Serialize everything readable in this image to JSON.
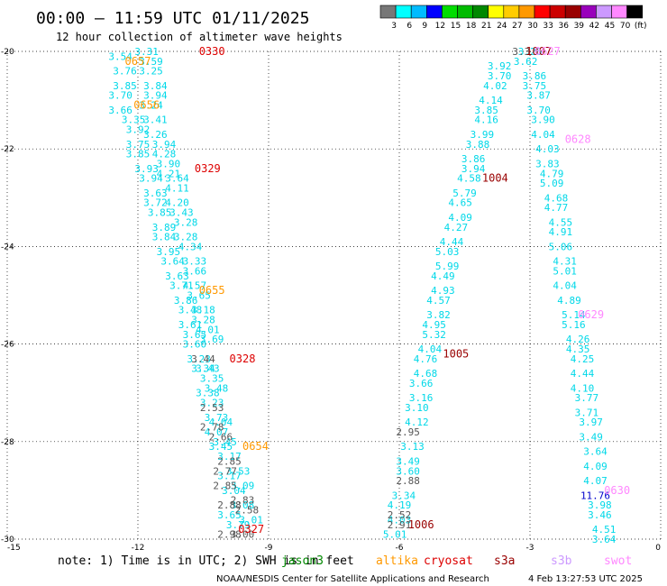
{
  "header": {
    "title": "00:00 – 11:59 UTC 01/11/2025",
    "subtitle": "12 hour collection of altimeter wave heights"
  },
  "legend": {
    "colors": [
      "#777777",
      "#00ffff",
      "#00bbff",
      "#0000ff",
      "#00dd00",
      "#00bb00",
      "#008800",
      "#ffff00",
      "#ffcc00",
      "#ff9900",
      "#ff0000",
      "#cc0000",
      "#990000",
      "#9900bb",
      "#cc99ff",
      "#ff88ff",
      "#000000"
    ],
    "labels": [
      "3",
      "6",
      "9",
      "12",
      "15",
      "18",
      "21",
      "24",
      "27",
      "30",
      "33",
      "36",
      "39",
      "42",
      "45",
      "70",
      "(ft)"
    ]
  },
  "footer": {
    "note_prefix": "note: 1) Time is in UTC; 2) SWH is in feet",
    "satellites": [
      {
        "name": "jason3",
        "color": "#008800"
      },
      {
        "name": "altika",
        "color": "#ff9900"
      },
      {
        "name": "cryosat",
        "color": "#dd0000"
      },
      {
        "name": "s3a",
        "color": "#990000"
      },
      {
        "name": "s3b",
        "color": "#cc99ff"
      },
      {
        "name": "swot",
        "color": "#ff88ff"
      }
    ],
    "credit": "NOAA/NESDIS Center for Satellite Applications and Research",
    "timestamp": "4 Feb 13:27:53 UTC 2025"
  },
  "chart_data": {
    "type": "scatter",
    "xlim": [
      -15,
      0
    ],
    "ylim": [
      -30,
      -20
    ],
    "x_ticks": [
      -15,
      -12,
      -9,
      -6,
      -3,
      0
    ],
    "y_ticks": [
      -20,
      -22,
      -24,
      -26,
      -28,
      -30
    ],
    "grid": true,
    "series": [
      {
        "color": "#00d8e8",
        "points": [
          [
            -12.4,
            -20.1,
            "3.54"
          ],
          [
            -11.8,
            -20.0,
            "3.31"
          ],
          [
            -11.7,
            -20.2,
            "3.59"
          ],
          [
            -12.3,
            -20.4,
            "3.76"
          ],
          [
            -11.7,
            -20.4,
            "3.25"
          ],
          [
            -12.3,
            -20.7,
            "3.85"
          ],
          [
            -11.6,
            -20.7,
            "3.84"
          ],
          [
            -12.4,
            -20.9,
            "3.70"
          ],
          [
            -11.6,
            -20.9,
            "3.94"
          ],
          [
            -12.4,
            -21.2,
            "3.66"
          ],
          [
            -11.7,
            -21.1,
            "3.24"
          ],
          [
            -12.1,
            -21.4,
            "3.35"
          ],
          [
            -11.6,
            -21.4,
            "3.41"
          ],
          [
            -12.0,
            -21.6,
            "3.92"
          ],
          [
            -11.6,
            -21.7,
            "3.26"
          ],
          [
            -12.0,
            -21.9,
            "3.75"
          ],
          [
            -11.4,
            -21.9,
            "3.94"
          ],
          [
            -12.0,
            -22.1,
            "3.85"
          ],
          [
            -11.4,
            -22.1,
            "4.28"
          ],
          [
            -11.3,
            -22.3,
            "3.90"
          ],
          [
            -11.8,
            -22.4,
            "3.93"
          ],
          [
            -11.3,
            -22.5,
            "4.21"
          ],
          [
            -11.7,
            -22.6,
            "3.94"
          ],
          [
            -11.1,
            -22.6,
            "3.64"
          ],
          [
            -11.6,
            -22.9,
            "3.63"
          ],
          [
            -11.1,
            -22.8,
            "4.11"
          ],
          [
            -11.6,
            -23.1,
            "3.72"
          ],
          [
            -11.1,
            -23.1,
            "4.20"
          ],
          [
            -11.5,
            -23.3,
            "3.85"
          ],
          [
            -11.0,
            -23.3,
            "3.43"
          ],
          [
            -11.4,
            -23.6,
            "3.89"
          ],
          [
            -10.9,
            -23.5,
            "3.28"
          ],
          [
            -11.4,
            -23.8,
            "3.84"
          ],
          [
            -10.9,
            -23.8,
            "3.28"
          ],
          [
            -11.3,
            -24.1,
            "3.95"
          ],
          [
            -10.8,
            -24.0,
            "4.34"
          ],
          [
            -11.2,
            -24.3,
            "3.64"
          ],
          [
            -10.7,
            -24.3,
            "3.33"
          ],
          [
            -11.1,
            -24.6,
            "3.63"
          ],
          [
            -10.7,
            -24.5,
            "3.66"
          ],
          [
            -11.0,
            -24.8,
            "3.71"
          ],
          [
            -10.7,
            -24.8,
            "4.57"
          ],
          [
            -10.9,
            -25.1,
            "3.86"
          ],
          [
            -10.6,
            -25.0,
            "3.65"
          ],
          [
            -10.8,
            -25.3,
            "3.48"
          ],
          [
            -10.5,
            -25.3,
            "3.18"
          ],
          [
            -10.8,
            -25.6,
            "3.61"
          ],
          [
            -10.5,
            -25.5,
            "3.28"
          ],
          [
            -10.7,
            -25.8,
            "3.65"
          ],
          [
            -10.4,
            -25.7,
            "4.01"
          ],
          [
            -10.3,
            -25.9,
            "3.69"
          ],
          [
            -10.7,
            -26.0,
            "3.60"
          ],
          [
            -10.6,
            -26.3,
            "3.23"
          ],
          [
            -10.4,
            -26.5,
            "3.43"
          ],
          [
            -10.5,
            -26.5,
            "3.34"
          ],
          [
            -10.3,
            -26.7,
            "3.35"
          ],
          [
            -10.4,
            -27.0,
            "3.38"
          ],
          [
            -10.2,
            -26.9,
            "3.48"
          ],
          [
            -10.3,
            -27.2,
            "3.23"
          ],
          [
            -10.2,
            -27.5,
            "3.73"
          ],
          [
            -10.1,
            -27.6,
            "4.04"
          ],
          [
            -10.2,
            -27.8,
            "4.07"
          ],
          [
            -10.0,
            -28.0,
            "3.45"
          ],
          [
            -10.1,
            -28.1,
            "3.45"
          ],
          [
            -9.9,
            -28.3,
            "3.17"
          ],
          [
            -9.7,
            -28.6,
            "3.53"
          ],
          [
            -9.9,
            -28.7,
            "3.17"
          ],
          [
            -9.6,
            -28.9,
            "3.09"
          ],
          [
            -9.8,
            -29.0,
            "3.04"
          ],
          [
            -9.6,
            -29.3,
            "3.08"
          ],
          [
            -9.9,
            -29.5,
            "3.65"
          ],
          [
            -9.7,
            -29.7,
            "3.79"
          ],
          [
            -9.4,
            -29.6,
            "3.01"
          ],
          [
            -3.7,
            -20.3,
            "3.92"
          ],
          [
            -3.1,
            -20.2,
            "3.62"
          ],
          [
            -3.0,
            -20.0,
            "3.26"
          ],
          [
            -3.7,
            -20.5,
            "3.70"
          ],
          [
            -2.9,
            -20.5,
            "3.86"
          ],
          [
            -3.8,
            -20.7,
            "4.02"
          ],
          [
            -2.9,
            -20.7,
            "3.75"
          ],
          [
            -3.9,
            -21.0,
            "4.14"
          ],
          [
            -2.8,
            -20.9,
            "3.87"
          ],
          [
            -4.0,
            -21.2,
            "3.85"
          ],
          [
            -2.8,
            -21.2,
            "3.70"
          ],
          [
            -4.0,
            -21.4,
            "4.16"
          ],
          [
            -2.7,
            -21.4,
            "3.90"
          ],
          [
            -4.1,
            -21.7,
            "3.99"
          ],
          [
            -2.7,
            -21.7,
            "4.04"
          ],
          [
            -4.2,
            -21.9,
            "3.88"
          ],
          [
            -2.6,
            -22.0,
            "4.03"
          ],
          [
            -4.3,
            -22.2,
            "3.86"
          ],
          [
            -2.6,
            -22.3,
            "3.83"
          ],
          [
            -4.3,
            -22.4,
            "3.94"
          ],
          [
            -2.5,
            -22.5,
            "4.79"
          ],
          [
            -4.4,
            -22.6,
            "4.58"
          ],
          [
            -2.5,
            -22.7,
            "5.09"
          ],
          [
            -4.5,
            -22.9,
            "5.79"
          ],
          [
            -2.4,
            -23.0,
            "4.68"
          ],
          [
            -4.6,
            -23.1,
            "4.65"
          ],
          [
            -2.4,
            -23.2,
            "4.77"
          ],
          [
            -4.6,
            -23.4,
            "4.09"
          ],
          [
            -2.3,
            -23.5,
            "4.55"
          ],
          [
            -4.7,
            -23.6,
            "4.27"
          ],
          [
            -2.3,
            -23.7,
            "4.91"
          ],
          [
            -4.8,
            -23.9,
            "4.44"
          ],
          [
            -2.3,
            -24.0,
            "5.06"
          ],
          [
            -4.9,
            -24.1,
            "5.03"
          ],
          [
            -2.2,
            -24.3,
            "4.31"
          ],
          [
            -4.9,
            -24.4,
            "5.99"
          ],
          [
            -2.2,
            -24.5,
            "5.01"
          ],
          [
            -5.0,
            -24.6,
            "4.49"
          ],
          [
            -2.2,
            -24.8,
            "4.04"
          ],
          [
            -5.0,
            -24.9,
            "4.93"
          ],
          [
            -2.1,
            -25.1,
            "4.89"
          ],
          [
            -5.1,
            -25.1,
            "4.57"
          ],
          [
            -5.1,
            -25.4,
            "3.82"
          ],
          [
            -2.0,
            -25.4,
            "5.14"
          ],
          [
            -5.2,
            -25.6,
            "4.95"
          ],
          [
            -2.0,
            -25.6,
            "5.16"
          ],
          [
            -5.2,
            -25.8,
            "5.32"
          ],
          [
            -1.9,
            -25.9,
            "4.26"
          ],
          [
            -5.3,
            -26.1,
            "4.04"
          ],
          [
            -1.9,
            -26.1,
            "4.35"
          ],
          [
            -5.4,
            -26.3,
            "4.76"
          ],
          [
            -1.8,
            -26.3,
            "4.25"
          ],
          [
            -5.4,
            -26.6,
            "4.68"
          ],
          [
            -1.8,
            -26.6,
            "4.44"
          ],
          [
            -5.5,
            -26.8,
            "3.66"
          ],
          [
            -1.8,
            -26.9,
            "4.10"
          ],
          [
            -5.5,
            -27.1,
            "3.16"
          ],
          [
            -1.7,
            -27.1,
            "3.77"
          ],
          [
            -5.6,
            -27.3,
            "3.10"
          ],
          [
            -1.7,
            -27.4,
            "3.71"
          ],
          [
            -5.6,
            -27.6,
            "4.12"
          ],
          [
            -1.6,
            -27.6,
            "3.97"
          ],
          [
            -5.7,
            -28.1,
            "3.13"
          ],
          [
            -1.6,
            -27.9,
            "3.49"
          ],
          [
            -5.8,
            -28.4,
            "3.49"
          ],
          [
            -1.5,
            -28.2,
            "3.64"
          ],
          [
            -5.8,
            -28.6,
            "3.60"
          ],
          [
            -1.5,
            -28.5,
            "4.09"
          ],
          [
            -5.9,
            -29.1,
            "3.34"
          ],
          [
            -1.5,
            -28.8,
            "4.07"
          ],
          [
            -6.0,
            -29.3,
            "4.19"
          ],
          [
            -1.4,
            -29.3,
            "3.98"
          ],
          [
            -6.0,
            -29.6,
            "4.03"
          ],
          [
            -1.4,
            -29.5,
            "3.46"
          ],
          [
            -1.3,
            -29.8,
            "4.51"
          ],
          [
            -6.1,
            -29.9,
            "5.01"
          ],
          [
            -1.3,
            -30.0,
            "3.64"
          ]
        ]
      },
      {
        "color": "#555555",
        "points": [
          [
            -10.5,
            -26.3,
            "3.44"
          ],
          [
            -10.3,
            -27.3,
            "2.53"
          ],
          [
            -10.3,
            -27.7,
            "2.78"
          ],
          [
            -10.1,
            -27.9,
            "2.66"
          ],
          [
            -9.9,
            -28.4,
            "2.85"
          ],
          [
            -10.0,
            -28.6,
            "2.77"
          ],
          [
            -10.0,
            -28.9,
            "2.85"
          ],
          [
            -9.6,
            -29.2,
            "2.83"
          ],
          [
            -9.9,
            -29.3,
            "2.88"
          ],
          [
            -9.5,
            -29.4,
            "2.58"
          ],
          [
            -9.9,
            -29.9,
            "2.98"
          ],
          [
            -9.6,
            -29.9,
            "3.00"
          ],
          [
            -5.8,
            -27.8,
            "2.95"
          ],
          [
            -5.8,
            -28.8,
            "2.88"
          ],
          [
            -6.0,
            -29.5,
            "2.52"
          ],
          [
            -6.0,
            -29.7,
            "2.91"
          ],
          [
            -3.2,
            -20.0,
            "3.3"
          ]
        ]
      },
      {
        "color": "#0000cc",
        "points": [
          [
            -1.5,
            -29.1,
            "11.76"
          ]
        ]
      }
    ],
    "passes": [
      {
        "label": "0330",
        "x": -10.3,
        "y": -20.0,
        "color": "#dd0000"
      },
      {
        "label": "0657",
        "x": -12.0,
        "y": -20.2,
        "color": "#ff9900"
      },
      {
        "label": "0656",
        "x": -11.8,
        "y": -21.1,
        "color": "#ff9900"
      },
      {
        "label": "0329",
        "x": -10.4,
        "y": -22.4,
        "color": "#dd0000"
      },
      {
        "label": "0655",
        "x": -10.3,
        "y": -24.9,
        "color": "#ff9900"
      },
      {
        "label": "0328",
        "x": -9.6,
        "y": -26.3,
        "color": "#dd0000"
      },
      {
        "label": "0654",
        "x": -9.3,
        "y": -28.1,
        "color": "#ff9900"
      },
      {
        "label": "0327",
        "x": -9.4,
        "y": -29.8,
        "color": "#dd0000"
      },
      {
        "label": "1007",
        "x": -2.8,
        "y": -20.0,
        "color": "#990000"
      },
      {
        "label": "0627",
        "x": -2.6,
        "y": -20.0,
        "color": "#ff88ff"
      },
      {
        "label": "0628",
        "x": -1.9,
        "y": -21.8,
        "color": "#ff88ff"
      },
      {
        "label": "1004",
        "x": -3.8,
        "y": -22.6,
        "color": "#990000"
      },
      {
        "label": "1005",
        "x": -4.7,
        "y": -26.2,
        "color": "#990000"
      },
      {
        "label": "0629",
        "x": -1.6,
        "y": -25.4,
        "color": "#ff88ff"
      },
      {
        "label": "0630",
        "x": -1.0,
        "y": -29.0,
        "color": "#ff88ff"
      },
      {
        "label": "1006",
        "x": -5.5,
        "y": -29.7,
        "color": "#990000"
      }
    ]
  }
}
